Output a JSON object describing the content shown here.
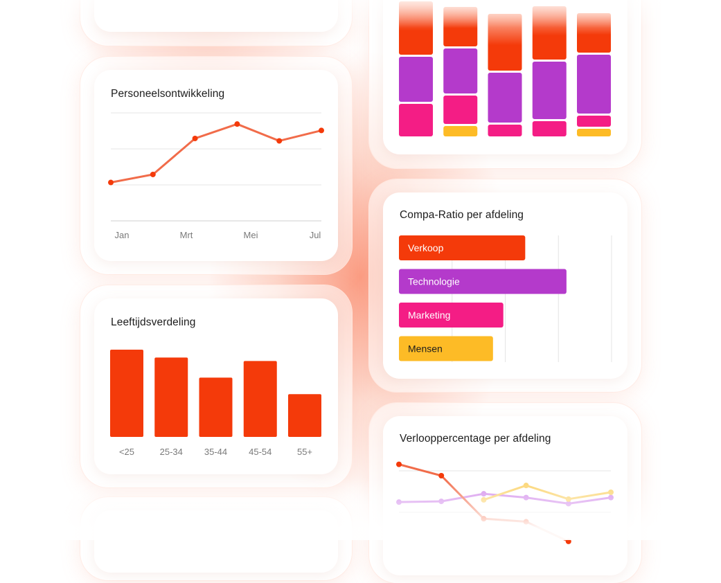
{
  "colors": {
    "orange": "#F43A0A",
    "line_orange": "#F16C4A",
    "purple": "#B43ACB",
    "pink": "#F41D85",
    "yellow": "#FDBB26",
    "light_purple": "#D28BEB",
    "light_yellow": "#FBD36B",
    "grid": "#E4E4E4"
  },
  "chart_data": [
    {
      "id": "personeelsontwikkeling",
      "type": "line",
      "title": "Personeelsontwikkeling",
      "tick_labels": [
        "Jan",
        "Mrt",
        "Mei",
        "Jul"
      ],
      "x": [
        1,
        2,
        3,
        4,
        5,
        6
      ],
      "values": [
        48,
        58,
        103,
        121,
        100,
        113
      ],
      "ylim": [
        0,
        135
      ],
      "grid": true
    },
    {
      "id": "leeftijdsverdeling",
      "type": "bar",
      "title": "Leeftijdsverdeling",
      "categories": [
        "<25",
        "25-34",
        "35-44",
        "45-54",
        "55+"
      ],
      "values": [
        100,
        91,
        68,
        87,
        49
      ],
      "ylim": [
        0,
        100
      ]
    },
    {
      "id": "stacked-top",
      "type": "bar",
      "stacked": true,
      "categories": [
        "1",
        "2",
        "3",
        "4",
        "5"
      ],
      "series": [
        {
          "color": "yellow",
          "values": [
            0,
            18,
            0,
            0,
            14
          ]
        },
        {
          "color": "pink",
          "values": [
            50,
            44,
            20,
            25,
            19
          ]
        },
        {
          "color": "purple",
          "values": [
            68,
            68,
            75,
            86,
            88
          ]
        },
        {
          "color": "orange",
          "values": [
            80,
            60,
            85,
            80,
            60
          ]
        }
      ],
      "ylim": [
        0,
        198
      ]
    },
    {
      "id": "compa-ratio",
      "type": "bar",
      "orientation": "horizontal",
      "title": "Compa-Ratio per afdeling",
      "categories": [
        "Verkoop",
        "Technologie",
        "Marketing",
        "Mensen"
      ],
      "values": [
        0.98,
        1.3,
        0.81,
        0.73
      ],
      "xlim": [
        0,
        1.65
      ],
      "grid": true
    },
    {
      "id": "verloop",
      "type": "line",
      "title": "Verlooppercentage per afdeling",
      "x": [
        1,
        2,
        3,
        4,
        5,
        6
      ],
      "series": [
        {
          "color": "orange",
          "values": [
            32,
            17,
            -40,
            -44,
            -70,
            null
          ]
        },
        {
          "color": "light_purple",
          "values": [
            -18,
            -17,
            -7,
            -12,
            -20,
            -12
          ]
        },
        {
          "color": "light_yellow",
          "values": [
            null,
            null,
            -15,
            4,
            -14,
            -5
          ]
        }
      ],
      "ylim": [
        -60,
        50
      ],
      "grid": true
    }
  ]
}
